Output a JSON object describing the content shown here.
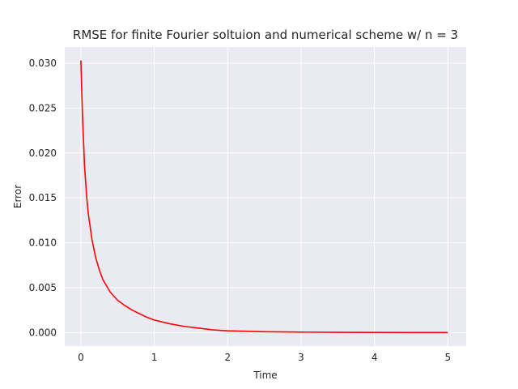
{
  "chart_data": {
    "type": "line",
    "title": "RMSE for finite Fourier soltuion and numerical scheme w/ n = 3",
    "xlabel": "Time",
    "ylabel": "Error",
    "xlim": [
      -0.22,
      5.25
    ],
    "ylim": [
      -0.0015,
      0.0318
    ],
    "xticks": [
      0,
      1,
      2,
      3,
      4,
      5
    ],
    "xtick_labels": [
      "0",
      "1",
      "2",
      "3",
      "4",
      "5"
    ],
    "yticks": [
      0.0,
      0.005,
      0.01,
      0.015,
      0.02,
      0.025,
      0.03
    ],
    "ytick_labels": [
      "0.000",
      "0.005",
      "0.010",
      "0.015",
      "0.020",
      "0.025",
      "0.030"
    ],
    "grid": true,
    "legend": "none",
    "colors": {
      "background": "#eaeaf2",
      "grid": "#ffffff",
      "line": "#ff0000"
    },
    "series": [
      {
        "color": "#ff0000",
        "x": [
          0,
          0.02,
          0.05,
          0.08,
          0.1,
          0.15,
          0.2,
          0.25,
          0.3,
          0.4,
          0.5,
          0.6,
          0.7,
          0.8,
          0.9,
          1.0,
          1.2,
          1.4,
          1.6,
          1.8,
          2.0,
          2.5,
          3.0,
          3.5,
          4.0,
          4.5,
          5.0
        ],
        "y": [
          0.0303,
          0.0245,
          0.0185,
          0.015,
          0.0133,
          0.0104,
          0.0084,
          0.007,
          0.0059,
          0.0045,
          0.0036,
          0.003,
          0.0025,
          0.0021,
          0.0017,
          0.0014,
          0.001,
          0.0007,
          0.0005,
          0.0003,
          0.0002,
          0.0001,
          5e-05,
          3e-05,
          2e-05,
          1e-05,
          1e-05
        ]
      }
    ]
  }
}
